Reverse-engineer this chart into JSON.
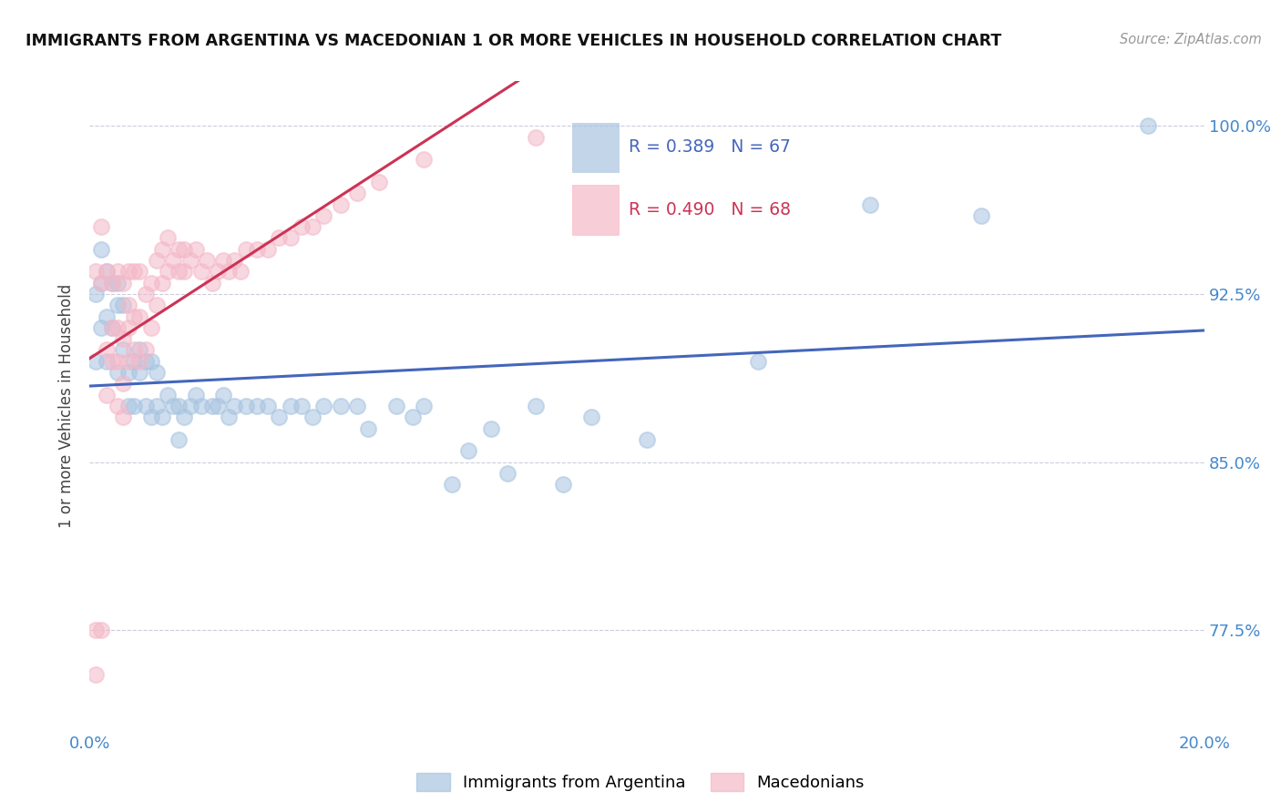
{
  "title": "IMMIGRANTS FROM ARGENTINA VS MACEDONIAN 1 OR MORE VEHICLES IN HOUSEHOLD CORRELATION CHART",
  "source": "Source: ZipAtlas.com",
  "ylabel": "1 or more Vehicles in Household",
  "ytick_labels": [
    "77.5%",
    "85.0%",
    "92.5%",
    "100.0%"
  ],
  "ytick_values": [
    0.775,
    0.85,
    0.925,
    1.0
  ],
  "blue_R": 0.389,
  "blue_N": 67,
  "pink_R": 0.49,
  "pink_N": 68,
  "blue_color": "#A8C4E0",
  "pink_color": "#F4B8C8",
  "blue_line_color": "#4466BB",
  "pink_line_color": "#CC3355",
  "blue_label": "Immigrants from Argentina",
  "pink_label": "Macedonians",
  "xlim": [
    0.0,
    0.2
  ],
  "ylim": [
    0.73,
    1.02
  ],
  "blue_x": [
    0.001,
    0.001,
    0.002,
    0.002,
    0.002,
    0.003,
    0.003,
    0.003,
    0.004,
    0.004,
    0.005,
    0.005,
    0.005,
    0.006,
    0.006,
    0.007,
    0.007,
    0.008,
    0.008,
    0.009,
    0.009,
    0.01,
    0.01,
    0.011,
    0.011,
    0.012,
    0.012,
    0.013,
    0.014,
    0.015,
    0.016,
    0.016,
    0.017,
    0.018,
    0.019,
    0.02,
    0.022,
    0.023,
    0.024,
    0.025,
    0.026,
    0.028,
    0.03,
    0.032,
    0.034,
    0.036,
    0.038,
    0.04,
    0.042,
    0.045,
    0.048,
    0.05,
    0.055,
    0.058,
    0.06,
    0.065,
    0.068,
    0.072,
    0.075,
    0.08,
    0.085,
    0.09,
    0.1,
    0.12,
    0.14,
    0.16,
    0.19
  ],
  "blue_y": [
    0.895,
    0.925,
    0.91,
    0.93,
    0.945,
    0.915,
    0.935,
    0.895,
    0.93,
    0.91,
    0.92,
    0.93,
    0.89,
    0.9,
    0.92,
    0.89,
    0.875,
    0.875,
    0.895,
    0.9,
    0.89,
    0.895,
    0.875,
    0.87,
    0.895,
    0.875,
    0.89,
    0.87,
    0.88,
    0.875,
    0.875,
    0.86,
    0.87,
    0.875,
    0.88,
    0.875,
    0.875,
    0.875,
    0.88,
    0.87,
    0.875,
    0.875,
    0.875,
    0.875,
    0.87,
    0.875,
    0.875,
    0.87,
    0.875,
    0.875,
    0.875,
    0.865,
    0.875,
    0.87,
    0.875,
    0.84,
    0.855,
    0.865,
    0.845,
    0.875,
    0.84,
    0.87,
    0.86,
    0.895,
    0.965,
    0.96,
    1.0
  ],
  "pink_x": [
    0.001,
    0.001,
    0.001,
    0.002,
    0.002,
    0.002,
    0.003,
    0.003,
    0.003,
    0.004,
    0.004,
    0.004,
    0.005,
    0.005,
    0.005,
    0.005,
    0.006,
    0.006,
    0.006,
    0.006,
    0.007,
    0.007,
    0.007,
    0.007,
    0.008,
    0.008,
    0.008,
    0.009,
    0.009,
    0.009,
    0.01,
    0.01,
    0.011,
    0.011,
    0.012,
    0.012,
    0.013,
    0.013,
    0.014,
    0.014,
    0.015,
    0.016,
    0.016,
    0.017,
    0.017,
    0.018,
    0.019,
    0.02,
    0.021,
    0.022,
    0.023,
    0.024,
    0.025,
    0.026,
    0.027,
    0.028,
    0.03,
    0.032,
    0.034,
    0.036,
    0.038,
    0.04,
    0.042,
    0.045,
    0.048,
    0.052,
    0.06,
    0.08
  ],
  "pink_y": [
    0.755,
    0.775,
    0.935,
    0.775,
    0.93,
    0.955,
    0.88,
    0.9,
    0.935,
    0.895,
    0.91,
    0.93,
    0.875,
    0.895,
    0.91,
    0.935,
    0.87,
    0.885,
    0.905,
    0.93,
    0.895,
    0.91,
    0.92,
    0.935,
    0.9,
    0.915,
    0.935,
    0.895,
    0.915,
    0.935,
    0.9,
    0.925,
    0.91,
    0.93,
    0.92,
    0.94,
    0.93,
    0.945,
    0.935,
    0.95,
    0.94,
    0.935,
    0.945,
    0.935,
    0.945,
    0.94,
    0.945,
    0.935,
    0.94,
    0.93,
    0.935,
    0.94,
    0.935,
    0.94,
    0.935,
    0.945,
    0.945,
    0.945,
    0.95,
    0.95,
    0.955,
    0.955,
    0.96,
    0.965,
    0.97,
    0.975,
    0.985,
    0.995
  ]
}
